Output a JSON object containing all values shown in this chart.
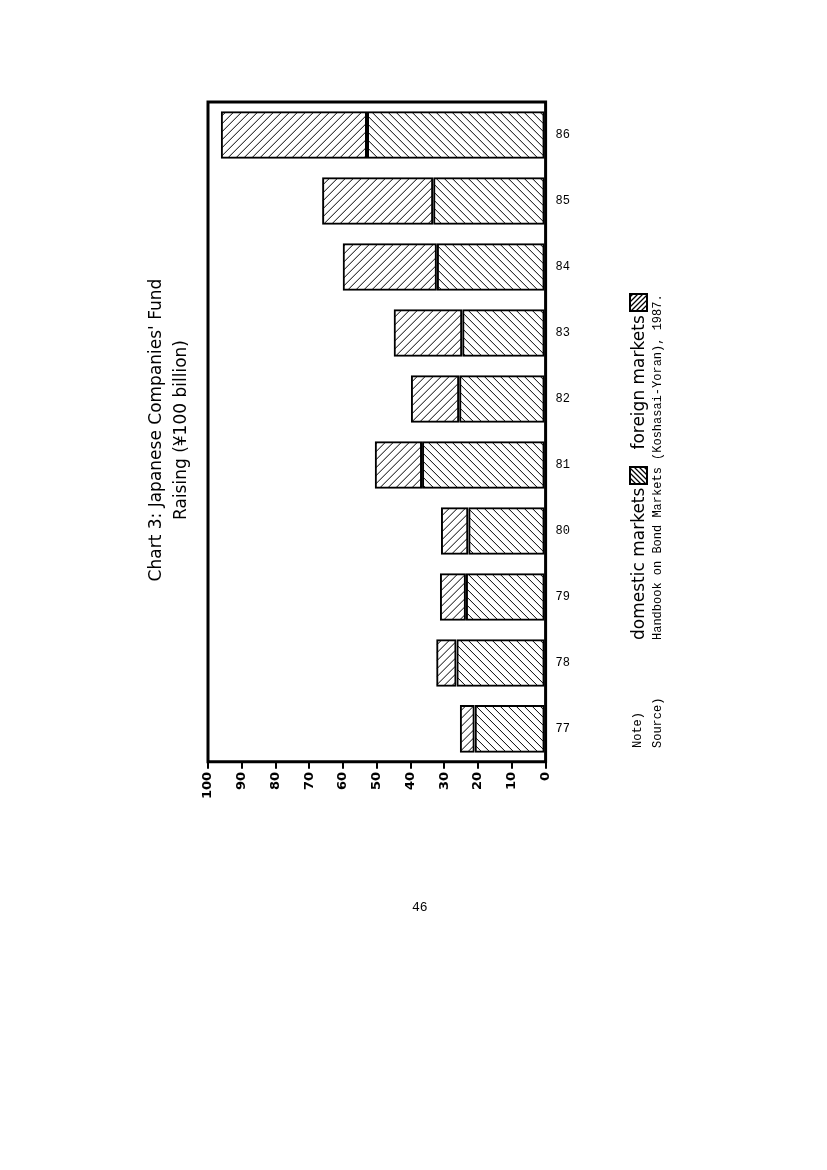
{
  "chart_data": {
    "type": "bar",
    "orientation": "horizontal",
    "stacked": true,
    "title": "Chart 3: Japanese Companies' Fund Raising (¥100 billion)",
    "categories": [
      "86",
      "85",
      "84",
      "83",
      "82",
      "81",
      "80",
      "79",
      "78",
      "77"
    ],
    "series": [
      {
        "name": "domestic markets",
        "color": "#000000",
        "values": [
          52.9,
          33.3,
          32.2,
          24.7,
          25.6,
          36.6,
          22.9,
          23.6,
          26.4,
          21.0
        ]
      },
      {
        "name": "foreign markets",
        "color": "#000000",
        "values": [
          43.3,
          32.9,
          27.9,
          20.3,
          14.3,
          14.0,
          8.1,
          7.7,
          6.0,
          4.4
        ]
      }
    ],
    "xlim": [
      100,
      0
    ],
    "xticks": [
      100,
      90,
      80,
      70,
      60,
      50,
      40,
      30,
      20,
      10,
      0
    ],
    "legend": "right",
    "annotations": [
      "Note)",
      "Source)",
      "Handbook on Bond Markets (Koshasai-Yoran), 1987.",
      "46"
    ]
  }
}
